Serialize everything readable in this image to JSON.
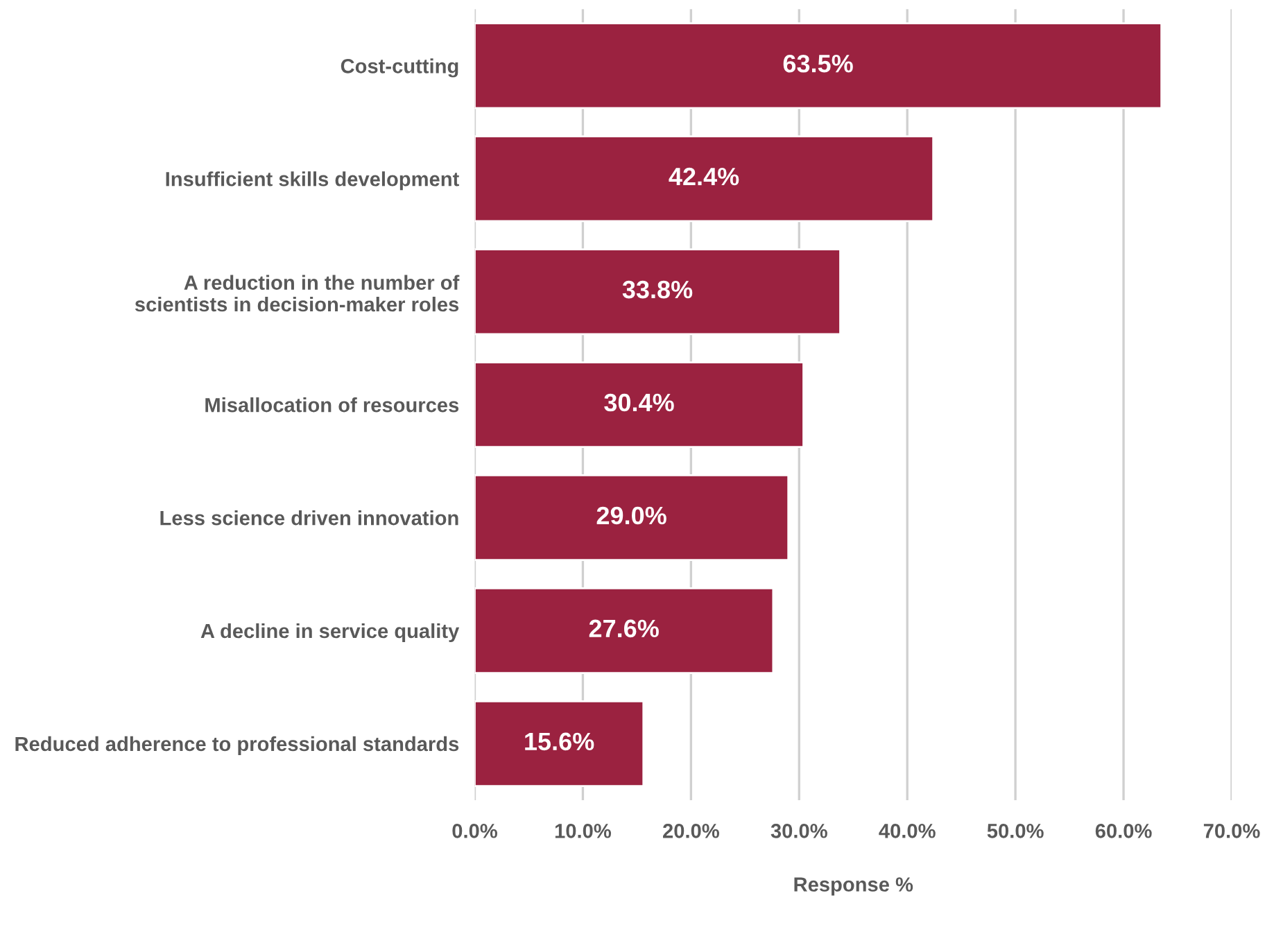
{
  "chart_data": {
    "type": "bar",
    "orientation": "horizontal",
    "xlabel": "Response %",
    "categories": [
      "Cost-cutting",
      "Insufficient skills development",
      "A reduction in the number of\nscientists in decision-maker roles",
      "Misallocation of resources",
      "Less science driven innovation",
      "A decline in service quality",
      "Reduced adherence to professional standards"
    ],
    "values": [
      63.5,
      42.4,
      33.8,
      30.4,
      29.0,
      27.6,
      15.6
    ],
    "value_labels": [
      "63.5%",
      "42.4%",
      "33.8%",
      "30.4%",
      "29.0%",
      "27.6%",
      "15.6%"
    ],
    "color": "#9b2240",
    "xlim": [
      0,
      70
    ],
    "xticks": [
      {
        "value": 0,
        "label": "0.0%"
      },
      {
        "value": 10,
        "label": "10.0%"
      },
      {
        "value": 20,
        "label": "20.0%"
      },
      {
        "value": 30,
        "label": "30.0%"
      },
      {
        "value": 40,
        "label": "40.0%"
      },
      {
        "value": 50,
        "label": "50.0%"
      },
      {
        "value": 60,
        "label": "60.0%"
      },
      {
        "value": 70,
        "label": "70.0%"
      }
    ],
    "grid": "x"
  }
}
